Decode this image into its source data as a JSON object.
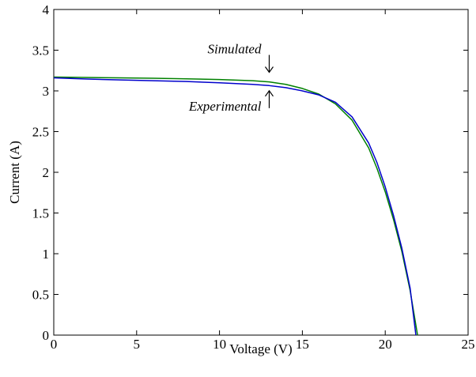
{
  "chart_data": {
    "type": "line",
    "xlabel": "Voltage (V)",
    "ylabel": "Current (A)",
    "xlim": [
      0,
      25
    ],
    "ylim": [
      0,
      4
    ],
    "xticks": [
      "0",
      "5",
      "10",
      "15",
      "20",
      "25"
    ],
    "yticks": [
      "0",
      "0.5",
      "1",
      "1.5",
      "2",
      "2.5",
      "3",
      "3.5",
      "4"
    ],
    "grid": false,
    "series": [
      {
        "name": "Simulated",
        "color": "#008000",
        "points": [
          [
            0,
            3.17
          ],
          [
            2,
            3.165
          ],
          [
            4,
            3.16
          ],
          [
            6,
            3.155
          ],
          [
            8,
            3.148
          ],
          [
            10,
            3.14
          ],
          [
            12,
            3.125
          ],
          [
            13,
            3.11
          ],
          [
            14,
            3.08
          ],
          [
            15,
            3.03
          ],
          [
            16,
            2.96
          ],
          [
            17,
            2.84
          ],
          [
            18,
            2.64
          ],
          [
            19,
            2.3
          ],
          [
            19.5,
            2.05
          ],
          [
            20,
            1.76
          ],
          [
            20.5,
            1.42
          ],
          [
            21,
            1.03
          ],
          [
            21.5,
            0.55
          ],
          [
            21.95,
            0.0
          ]
        ]
      },
      {
        "name": "Experimental",
        "color": "#0000cc",
        "points": [
          [
            0,
            3.16
          ],
          [
            2,
            3.145
          ],
          [
            4,
            3.135
          ],
          [
            6,
            3.125
          ],
          [
            8,
            3.115
          ],
          [
            10,
            3.1
          ],
          [
            12,
            3.08
          ],
          [
            13,
            3.065
          ],
          [
            14,
            3.04
          ],
          [
            15,
            3.0
          ],
          [
            16,
            2.95
          ],
          [
            17,
            2.86
          ],
          [
            18,
            2.68
          ],
          [
            19,
            2.36
          ],
          [
            19.5,
            2.12
          ],
          [
            20,
            1.82
          ],
          [
            20.5,
            1.47
          ],
          [
            21,
            1.07
          ],
          [
            21.5,
            0.58
          ],
          [
            21.85,
            0.0
          ]
        ]
      }
    ],
    "annotations": [
      {
        "text": "Simulated",
        "arrow": "down",
        "x": 13.0,
        "y": 3.12
      },
      {
        "text": "Experimental",
        "arrow": "up",
        "x": 13.0,
        "y": 3.06
      }
    ]
  }
}
